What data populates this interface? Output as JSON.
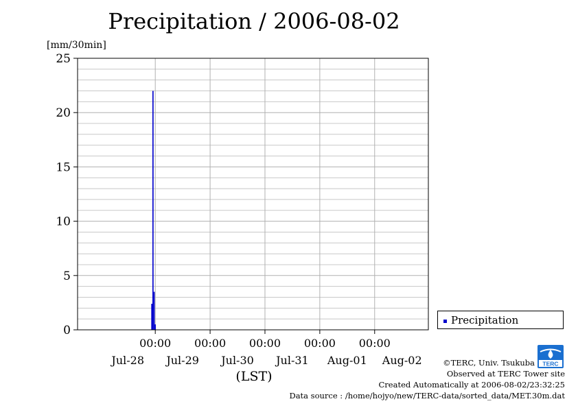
{
  "chart_data": {
    "type": "bar",
    "title": "Precipitation / 2006-08-02",
    "ylabel": "[mm/30min]",
    "xlabel": "(LST)",
    "ylim": [
      0,
      25
    ],
    "yticks": [
      0,
      5,
      10,
      15,
      20,
      25
    ],
    "xlim": [
      "2006-07-27T14:00",
      "2006-08-02T23:30"
    ],
    "x_time_ticks": [
      "00:00",
      "00:00",
      "00:00",
      "00:00",
      "00:00"
    ],
    "x_tick_times": [
      "2006-07-29T00:00",
      "2006-07-30T00:00",
      "2006-07-31T00:00",
      "2006-08-01T00:00",
      "2006-08-02T00:00"
    ],
    "x_date_labels": [
      "Jul-28",
      "Jul-29",
      "Jul-30",
      "Jul-31",
      "Aug-01",
      "Aug-02"
    ],
    "x_date_label_times": [
      "2006-07-28T12:00",
      "2006-07-29T12:00",
      "2006-07-30T12:00",
      "2006-07-31T12:00",
      "2006-08-01T12:00",
      "2006-08-02T12:00"
    ],
    "grid": true,
    "legend_position": "right",
    "series": [
      {
        "name": "Precipitation",
        "color": "#0000cc",
        "x": [
          "2006-07-28T22:30",
          "2006-07-28T23:00",
          "2006-07-28T23:30",
          "2006-07-29T00:00"
        ],
        "values": [
          2.4,
          22.0,
          3.5,
          0.5
        ]
      }
    ]
  },
  "legend": {
    "label": "Precipitation"
  },
  "credits": {
    "copyright": "©TERC, Univ. Tsukuba",
    "observed": "Observed at TERC Tower site",
    "created": "Created Automatically at 2006-08-02/23:32:25",
    "source": "Data source : /home/hojyo/new/TERC-data/sorted_data/MET.30m.dat"
  },
  "logo": {
    "text": "TERC",
    "color": "#1a6fd0"
  }
}
